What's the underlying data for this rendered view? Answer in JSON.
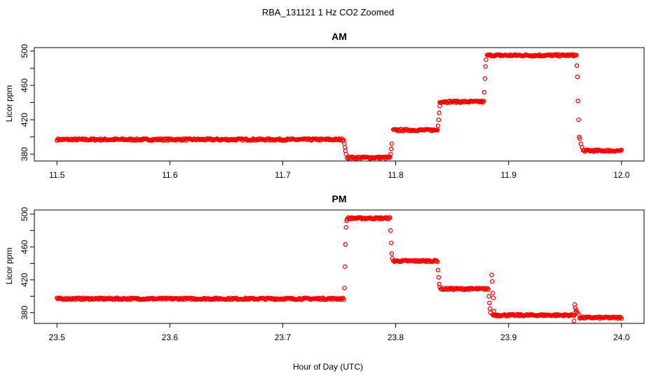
{
  "figure": {
    "title": "RBA_131121  1 Hz CO2 Zoomed",
    "xlabel": "Hour of Day (UTC)",
    "series_color": "#ff0000"
  },
  "chart_data": [
    {
      "type": "scatter",
      "title": "AM",
      "ylabel": "Licor ppm",
      "xlim": [
        11.48,
        12.02
      ],
      "ylim": [
        372,
        504
      ],
      "x_ticks": [
        "11.5",
        "11.6",
        "11.7",
        "11.8",
        "11.9",
        "12.0"
      ],
      "y_ticks": [
        "380",
        "420",
        "460",
        "500"
      ],
      "y_minor_ticks": [
        400,
        440,
        480
      ],
      "marker": "open-circle",
      "segments": [
        {
          "x_start": 11.5,
          "x_end": 11.754,
          "y": 397
        },
        {
          "x_start": 11.757,
          "x_end": 11.795,
          "y": 376
        },
        {
          "x_start": 11.798,
          "x_end": 11.837,
          "y": 408
        },
        {
          "x_start": 11.839,
          "x_end": 11.878,
          "y": 441
        },
        {
          "x_start": 11.881,
          "x_end": 11.96,
          "y": 495
        },
        {
          "x_start": 11.966,
          "x_end": 12.0,
          "y": 384
        }
      ],
      "transitions": [
        {
          "x": [
            11.7545,
            11.755,
            11.7555,
            11.756
          ],
          "y": [
            392,
            388,
            384,
            380
          ]
        },
        {
          "x": [
            11.7955,
            11.796,
            11.7965
          ],
          "y": [
            380,
            386,
            392
          ]
        },
        {
          "x": [
            11.8375,
            11.838,
            11.8385,
            11.839
          ],
          "y": [
            413,
            420,
            428,
            436
          ]
        },
        {
          "x": [
            11.8785,
            11.879,
            11.8795,
            11.88
          ],
          "y": [
            452,
            468,
            482,
            490
          ]
        },
        {
          "x": [
            11.9605,
            11.961,
            11.9615,
            11.962,
            11.9625,
            11.963,
            11.964,
            11.965
          ],
          "y": [
            483,
            470,
            442,
            420,
            400,
            398,
            392,
            388
          ]
        }
      ]
    },
    {
      "type": "scatter",
      "title": "PM",
      "ylabel": "Licor ppm",
      "xlim": [
        23.48,
        24.02
      ],
      "ylim": [
        367,
        505
      ],
      "x_ticks": [
        "23.5",
        "23.6",
        "23.7",
        "23.8",
        "23.9",
        "24.0"
      ],
      "y_ticks": [
        "380",
        "420",
        "460",
        "500"
      ],
      "y_minor_ticks": [
        400,
        440,
        480
      ],
      "marker": "open-circle",
      "segments": [
        {
          "x_start": 23.5,
          "x_end": 23.754,
          "y": 397
        },
        {
          "x_start": 23.758,
          "x_end": 23.795,
          "y": 495
        },
        {
          "x_start": 23.798,
          "x_end": 23.837,
          "y": 443
        },
        {
          "x_start": 23.84,
          "x_end": 23.882,
          "y": 409
        },
        {
          "x_start": 23.886,
          "x_end": 23.958,
          "y": 377
        },
        {
          "x_start": 23.963,
          "x_end": 24.0,
          "y": 374
        }
      ],
      "transitions": [
        {
          "x": [
            23.7545,
            23.755,
            23.7555,
            23.756,
            23.7565,
            23.757
          ],
          "y": [
            410,
            436,
            463,
            484,
            492,
            494
          ]
        },
        {
          "x": [
            23.7955,
            23.796,
            23.7965,
            23.797
          ],
          "y": [
            480,
            465,
            452,
            446
          ]
        },
        {
          "x": [
            23.8375,
            23.838,
            23.8385,
            23.839
          ],
          "y": [
            432,
            423,
            415,
            411
          ]
        },
        {
          "x": [
            23.8825,
            23.883,
            23.8835,
            23.884,
            23.885,
            23.8855,
            23.886,
            23.8865,
            23.887
          ],
          "y": [
            400,
            392,
            385,
            380,
            426,
            418,
            404,
            398,
            382
          ]
        },
        {
          "x": [
            23.958,
            23.9585,
            23.959,
            23.9595,
            23.96,
            23.961,
            23.962
          ],
          "y": [
            370,
            390,
            386,
            381,
            383,
            380,
            378
          ]
        }
      ]
    }
  ]
}
